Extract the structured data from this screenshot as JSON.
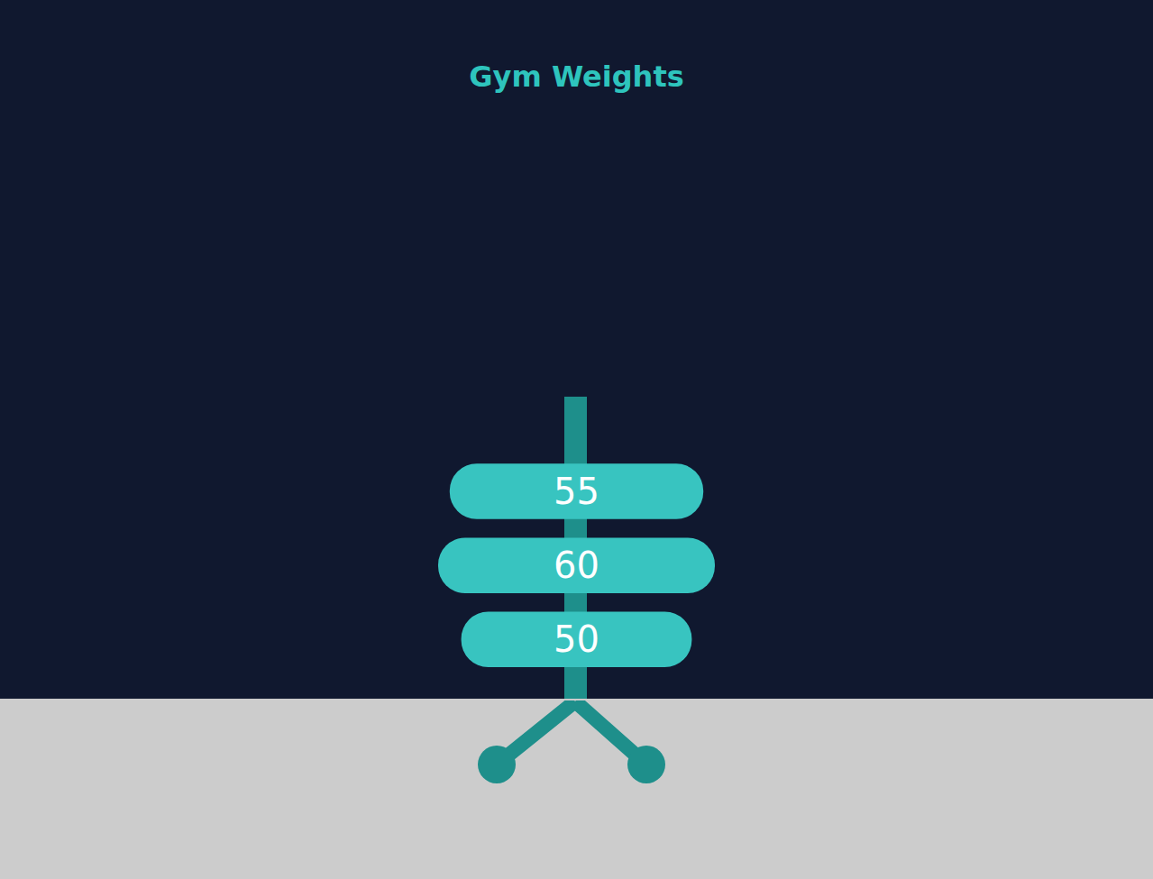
{
  "chart_data": {
    "type": "bar",
    "title": "Gym Weights",
    "orientation": "horizontal",
    "categories": [
      null,
      null,
      null
    ],
    "values": [
      55,
      60,
      50
    ],
    "color": "#38c4c0",
    "xlim": [
      -125,
      125
    ],
    "xticks": [],
    "grid": false,
    "data_labels": true,
    "tick_labels": false
  }
}
